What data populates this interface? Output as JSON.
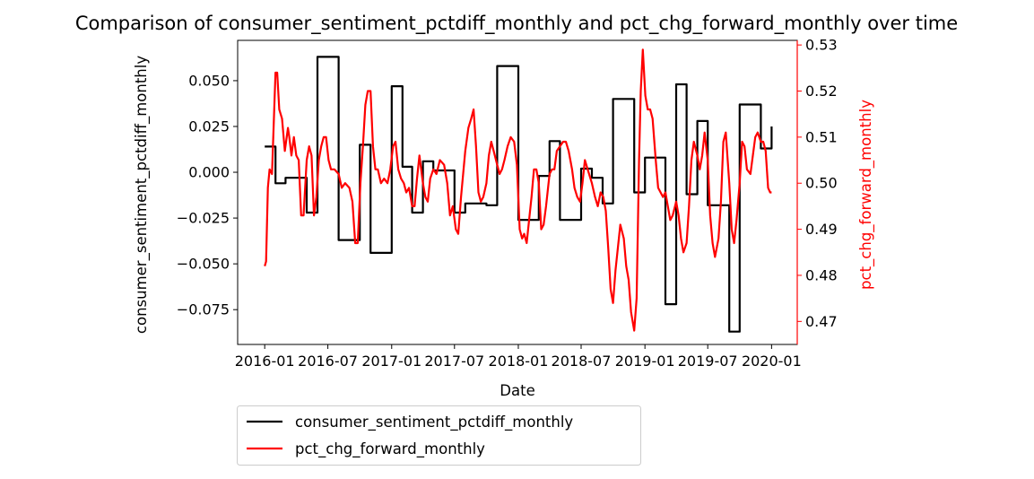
{
  "chart_data": {
    "type": "line",
    "title": "Comparison of consumer_sentiment_pctdiff_monthly and pct_chg_forward_monthly over time",
    "xlabel": "Date",
    "ylabel_left": "consumer_sentiment_pctdiff_monthly",
    "ylabel_right": "pct_chg_forward_monthly",
    "x_ticks": [
      "2016-01",
      "2016-07",
      "2017-01",
      "2017-07",
      "2018-01",
      "2018-07",
      "2019-01",
      "2019-07",
      "2020-01"
    ],
    "y_left_ticks": [
      -0.075,
      -0.05,
      -0.025,
      0.0,
      0.025,
      0.05
    ],
    "y_left_tick_labels": [
      "−0.075",
      "−0.050",
      "−0.025",
      "0.000",
      "0.025",
      "0.050"
    ],
    "y_right_ticks": [
      0.47,
      0.48,
      0.49,
      0.5,
      0.51,
      0.52,
      0.53
    ],
    "y_right_tick_labels": [
      "0.47",
      "0.48",
      "0.49",
      "0.50",
      "0.51",
      "0.52",
      "0.53"
    ],
    "ylim_left": [
      -0.094,
      0.072
    ],
    "ylim_right": [
      0.465,
      0.531
    ],
    "xlim": [
      "2015-10-15",
      "2020-03-15"
    ],
    "grid": false,
    "legend_position": "below plot, left",
    "colors": {
      "series1": "#000000",
      "series2": "#ff0000"
    },
    "series": [
      {
        "name": "consumer_sentiment_pctdiff_monthly",
        "axis": "left",
        "step": true,
        "points": [
          [
            "2016-01-01",
            0.014
          ],
          [
            "2016-02-01",
            -0.006
          ],
          [
            "2016-03-01",
            -0.003
          ],
          [
            "2016-05-01",
            -0.022
          ],
          [
            "2016-06-01",
            0.063
          ],
          [
            "2016-08-01",
            -0.037
          ],
          [
            "2016-10-01",
            0.015
          ],
          [
            "2016-11-01",
            -0.044
          ],
          [
            "2017-01-01",
            0.047
          ],
          [
            "2017-02-01",
            0.003
          ],
          [
            "2017-03-01",
            -0.022
          ],
          [
            "2017-04-01",
            0.006
          ],
          [
            "2017-05-01",
            0.001
          ],
          [
            "2017-07-01",
            -0.022
          ],
          [
            "2017-08-01",
            -0.017
          ],
          [
            "2017-10-01",
            -0.018
          ],
          [
            "2017-11-01",
            0.058
          ],
          [
            "2018-01-01",
            -0.026
          ],
          [
            "2018-03-01",
            -0.002
          ],
          [
            "2018-04-01",
            0.017
          ],
          [
            "2018-05-01",
            -0.026
          ],
          [
            "2018-07-01",
            0.002
          ],
          [
            "2018-08-01",
            -0.003
          ],
          [
            "2018-09-01",
            -0.017
          ],
          [
            "2018-10-01",
            0.04
          ],
          [
            "2018-12-01",
            -0.011
          ],
          [
            "2019-01-01",
            0.008
          ],
          [
            "2019-03-01",
            -0.072
          ],
          [
            "2019-04-01",
            0.048
          ],
          [
            "2019-05-01",
            -0.012
          ],
          [
            "2019-06-01",
            0.028
          ],
          [
            "2019-07-01",
            -0.018
          ],
          [
            "2019-09-01",
            -0.087
          ],
          [
            "2019-10-01",
            0.037
          ],
          [
            "2019-12-01",
            0.013
          ],
          [
            "2020-01-01",
            0.025
          ]
        ]
      },
      {
        "name": "pct_chg_forward_monthly",
        "axis": "right",
        "step": false,
        "points": [
          [
            "2016-01-01",
            0.482
          ],
          [
            "2016-01-05",
            0.483
          ],
          [
            "2016-01-10",
            0.499
          ],
          [
            "2016-01-15",
            0.503
          ],
          [
            "2016-01-22",
            0.502
          ],
          [
            "2016-02-01",
            0.524
          ],
          [
            "2016-02-06",
            0.524
          ],
          [
            "2016-02-12",
            0.516
          ],
          [
            "2016-02-20",
            0.514
          ],
          [
            "2016-02-28",
            0.507
          ],
          [
            "2016-03-08",
            0.512
          ],
          [
            "2016-03-12",
            0.51
          ],
          [
            "2016-03-18",
            0.506
          ],
          [
            "2016-03-25",
            0.51
          ],
          [
            "2016-04-01",
            0.506
          ],
          [
            "2016-04-08",
            0.505
          ],
          [
            "2016-04-15",
            0.493
          ],
          [
            "2016-04-22",
            0.493
          ],
          [
            "2016-05-01",
            0.505
          ],
          [
            "2016-05-08",
            0.508
          ],
          [
            "2016-05-15",
            0.506
          ],
          [
            "2016-05-22",
            0.493
          ],
          [
            "2016-05-29",
            0.497
          ],
          [
            "2016-06-05",
            0.505
          ],
          [
            "2016-06-12",
            0.508
          ],
          [
            "2016-06-19",
            0.51
          ],
          [
            "2016-06-26",
            0.51
          ],
          [
            "2016-07-03",
            0.505
          ],
          [
            "2016-07-10",
            0.503
          ],
          [
            "2016-07-20",
            0.503
          ],
          [
            "2016-08-01",
            0.502
          ],
          [
            "2016-08-10",
            0.499
          ],
          [
            "2016-08-20",
            0.5
          ],
          [
            "2016-09-01",
            0.499
          ],
          [
            "2016-09-10",
            0.496
          ],
          [
            "2016-09-18",
            0.487
          ],
          [
            "2016-09-25",
            0.487
          ],
          [
            "2016-10-03",
            0.5
          ],
          [
            "2016-10-10",
            0.508
          ],
          [
            "2016-10-17",
            0.517
          ],
          [
            "2016-10-24",
            0.52
          ],
          [
            "2016-11-01",
            0.52
          ],
          [
            "2016-11-08",
            0.508
          ],
          [
            "2016-11-15",
            0.503
          ],
          [
            "2016-11-22",
            0.503
          ],
          [
            "2016-12-01",
            0.5
          ],
          [
            "2016-12-10",
            0.501
          ],
          [
            "2016-12-20",
            0.5
          ],
          [
            "2016-12-28",
            0.503
          ],
          [
            "2017-01-05",
            0.508
          ],
          [
            "2017-01-12",
            0.509
          ],
          [
            "2017-01-20",
            0.503
          ],
          [
            "2017-01-28",
            0.501
          ],
          [
            "2017-02-05",
            0.5
          ],
          [
            "2017-02-12",
            0.498
          ],
          [
            "2017-02-20",
            0.499
          ],
          [
            "2017-03-01",
            0.495
          ],
          [
            "2017-03-08",
            0.495
          ],
          [
            "2017-03-15",
            0.501
          ],
          [
            "2017-03-22",
            0.506
          ],
          [
            "2017-04-01",
            0.5
          ],
          [
            "2017-04-08",
            0.497
          ],
          [
            "2017-04-15",
            0.496
          ],
          [
            "2017-04-22",
            0.501
          ],
          [
            "2017-05-01",
            0.503
          ],
          [
            "2017-05-10",
            0.502
          ],
          [
            "2017-05-20",
            0.505
          ],
          [
            "2017-06-01",
            0.504
          ],
          [
            "2017-06-10",
            0.5
          ],
          [
            "2017-06-18",
            0.493
          ],
          [
            "2017-06-26",
            0.495
          ],
          [
            "2017-07-05",
            0.49
          ],
          [
            "2017-07-12",
            0.489
          ],
          [
            "2017-07-20",
            0.497
          ],
          [
            "2017-08-01",
            0.507
          ],
          [
            "2017-08-10",
            0.512
          ],
          [
            "2017-08-18",
            0.514
          ],
          [
            "2017-08-25",
            0.516
          ],
          [
            "2017-09-01",
            0.508
          ],
          [
            "2017-09-08",
            0.498
          ],
          [
            "2017-09-15",
            0.496
          ],
          [
            "2017-09-22",
            0.497
          ],
          [
            "2017-10-01",
            0.5
          ],
          [
            "2017-10-08",
            0.506
          ],
          [
            "2017-10-15",
            0.509
          ],
          [
            "2017-10-22",
            0.507
          ],
          [
            "2017-11-01",
            0.504
          ],
          [
            "2017-11-08",
            0.502
          ],
          [
            "2017-11-15",
            0.503
          ],
          [
            "2017-11-22",
            0.505
          ],
          [
            "2017-12-01",
            0.508
          ],
          [
            "2017-12-10",
            0.51
          ],
          [
            "2017-12-20",
            0.509
          ],
          [
            "2017-12-28",
            0.504
          ],
          [
            "2018-01-05",
            0.49
          ],
          [
            "2018-01-12",
            0.488
          ],
          [
            "2018-01-18",
            0.489
          ],
          [
            "2018-01-25",
            0.487
          ],
          [
            "2018-02-01",
            0.492
          ],
          [
            "2018-02-08",
            0.497
          ],
          [
            "2018-02-15",
            0.503
          ],
          [
            "2018-02-22",
            0.503
          ],
          [
            "2018-03-01",
            0.5
          ],
          [
            "2018-03-08",
            0.49
          ],
          [
            "2018-03-15",
            0.491
          ],
          [
            "2018-03-22",
            0.495
          ],
          [
            "2018-04-01",
            0.502
          ],
          [
            "2018-04-08",
            0.503
          ],
          [
            "2018-04-15",
            0.503
          ],
          [
            "2018-04-22",
            0.507
          ],
          [
            "2018-05-01",
            0.508
          ],
          [
            "2018-05-10",
            0.509
          ],
          [
            "2018-05-18",
            0.509
          ],
          [
            "2018-05-26",
            0.507
          ],
          [
            "2018-06-05",
            0.503
          ],
          [
            "2018-06-12",
            0.499
          ],
          [
            "2018-06-20",
            0.497
          ],
          [
            "2018-06-28",
            0.496
          ],
          [
            "2018-07-05",
            0.5
          ],
          [
            "2018-07-12",
            0.505
          ],
          [
            "2018-07-20",
            0.503
          ],
          [
            "2018-08-01",
            0.5
          ],
          [
            "2018-08-10",
            0.497
          ],
          [
            "2018-08-18",
            0.495
          ],
          [
            "2018-08-26",
            0.498
          ],
          [
            "2018-09-03",
            0.497
          ],
          [
            "2018-09-10",
            0.494
          ],
          [
            "2018-09-17",
            0.486
          ],
          [
            "2018-09-24",
            0.477
          ],
          [
            "2018-10-01",
            0.474
          ],
          [
            "2018-10-08",
            0.481
          ],
          [
            "2018-10-15",
            0.486
          ],
          [
            "2018-10-22",
            0.491
          ],
          [
            "2018-11-01",
            0.488
          ],
          [
            "2018-11-08",
            0.482
          ],
          [
            "2018-11-15",
            0.479
          ],
          [
            "2018-11-22",
            0.472
          ],
          [
            "2018-12-01",
            0.468
          ],
          [
            "2018-12-08",
            0.475
          ],
          [
            "2018-12-15",
            0.505
          ],
          [
            "2018-12-20",
            0.52
          ],
          [
            "2018-12-26",
            0.529
          ],
          [
            "2019-01-02",
            0.519
          ],
          [
            "2019-01-09",
            0.516
          ],
          [
            "2019-01-16",
            0.516
          ],
          [
            "2019-01-23",
            0.514
          ],
          [
            "2019-02-01",
            0.505
          ],
          [
            "2019-02-08",
            0.499
          ],
          [
            "2019-02-15",
            0.498
          ],
          [
            "2019-02-22",
            0.497
          ],
          [
            "2019-03-01",
            0.498
          ],
          [
            "2019-03-08",
            0.495
          ],
          [
            "2019-03-15",
            0.492
          ],
          [
            "2019-03-22",
            0.493
          ],
          [
            "2019-04-01",
            0.496
          ],
          [
            "2019-04-08",
            0.493
          ],
          [
            "2019-04-15",
            0.488
          ],
          [
            "2019-04-22",
            0.485
          ],
          [
            "2019-05-01",
            0.487
          ],
          [
            "2019-05-08",
            0.495
          ],
          [
            "2019-05-15",
            0.505
          ],
          [
            "2019-05-22",
            0.509
          ],
          [
            "2019-06-01",
            0.506
          ],
          [
            "2019-06-08",
            0.503
          ],
          [
            "2019-06-15",
            0.506
          ],
          [
            "2019-06-22",
            0.511
          ],
          [
            "2019-07-01",
            0.505
          ],
          [
            "2019-07-08",
            0.493
          ],
          [
            "2019-07-15",
            0.487
          ],
          [
            "2019-07-22",
            0.484
          ],
          [
            "2019-08-01",
            0.488
          ],
          [
            "2019-08-08",
            0.496
          ],
          [
            "2019-08-15",
            0.509
          ],
          [
            "2019-08-22",
            0.511
          ],
          [
            "2019-09-01",
            0.5
          ],
          [
            "2019-09-08",
            0.49
          ],
          [
            "2019-09-15",
            0.487
          ],
          [
            "2019-09-22",
            0.492
          ],
          [
            "2019-10-01",
            0.5
          ],
          [
            "2019-10-08",
            0.509
          ],
          [
            "2019-10-15",
            0.508
          ],
          [
            "2019-10-22",
            0.503
          ],
          [
            "2019-11-01",
            0.502
          ],
          [
            "2019-11-08",
            0.506
          ],
          [
            "2019-11-15",
            0.51
          ],
          [
            "2019-11-22",
            0.511
          ],
          [
            "2019-12-01",
            0.509
          ],
          [
            "2019-12-08",
            0.509
          ],
          [
            "2019-12-15",
            0.507
          ],
          [
            "2019-12-22",
            0.499
          ],
          [
            "2019-12-28",
            0.498
          ],
          [
            "2020-01-01",
            0.498
          ]
        ]
      }
    ]
  }
}
